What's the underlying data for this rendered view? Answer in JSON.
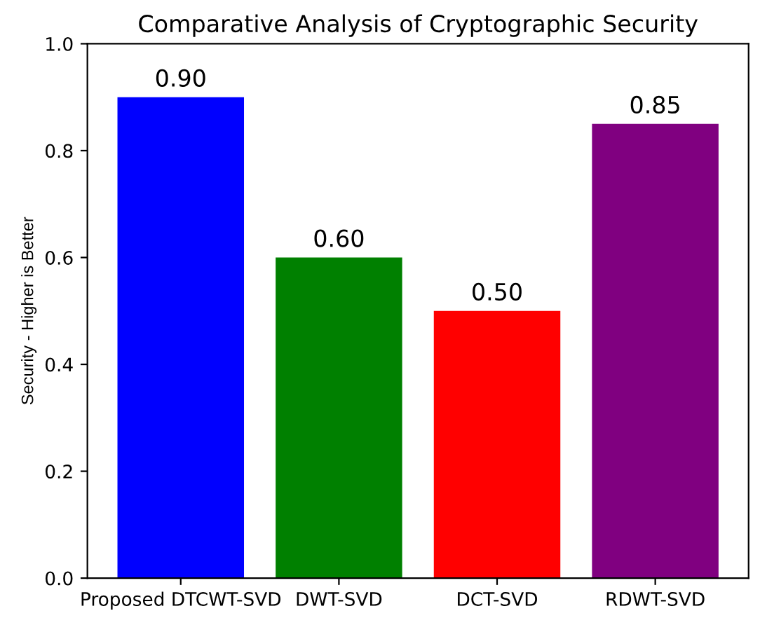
{
  "chart_data": {
    "type": "bar",
    "title": "Comparative Analysis of Cryptographic Security",
    "ylabel": "Security - Higher is Better",
    "categories": [
      "Proposed DTCWT-SVD",
      "DWT-SVD",
      "DCT-SVD",
      "RDWT-SVD"
    ],
    "values": [
      0.9,
      0.6,
      0.5,
      0.85
    ],
    "colors": [
      "#0000ff",
      "#008000",
      "#ff0000",
      "#800080"
    ],
    "value_labels": [
      "0.90",
      "0.60",
      "0.50",
      "0.85"
    ],
    "ylim": [
      0,
      1
    ],
    "yticks": [
      {
        "value": 0,
        "label": "0.0"
      },
      {
        "value": 0.2,
        "label": "0.2"
      },
      {
        "value": 0.4,
        "label": "0.4"
      },
      {
        "value": 0.6,
        "label": "0.6"
      },
      {
        "value": 0.8,
        "label": "0.8"
      },
      {
        "value": 1,
        "label": "1.0"
      }
    ]
  }
}
